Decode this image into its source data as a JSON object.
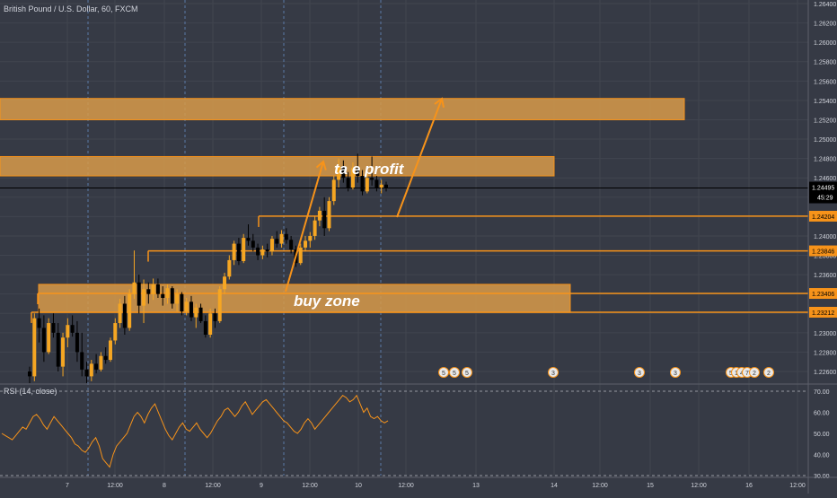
{
  "symbol_title": "British Pound / U.S. Dollar, 60, FXCM",
  "rsi_title": "RSI (14, close)",
  "colors": {
    "background": "#363a45",
    "grid": "#41454f",
    "up": "#f5a623",
    "down": "#000000",
    "zone_fill": "#d89b4a",
    "accent": "#f7931a",
    "text": "#d1d4dc",
    "price_label_bg": "#000000",
    "rsi_line": "#f7931a"
  },
  "annotations": {
    "buy_zone": "buy zone",
    "take_profit": "take profit",
    "take_profit_visible": "ta    e profit"
  },
  "event_markers": [
    "5",
    "5",
    "5",
    "3",
    "3",
    "3",
    "5",
    "1",
    "4",
    "7",
    "2",
    "2"
  ],
  "chart_data": [
    {
      "type": "candlestick",
      "title": "British Pound / U.S. Dollar, 60, FXCM",
      "xlabel": "",
      "ylabel": "",
      "x_ticks": [
        "7",
        "12:00",
        "8",
        "12:00",
        "9",
        "12:00",
        "10",
        "12:00",
        "13",
        "14",
        "12:00",
        "15",
        "12:00",
        "16",
        "12:00"
      ],
      "y_ticks": [
        1.226,
        1.228,
        1.23,
        1.232,
        1.234,
        1.236,
        1.238,
        1.24,
        1.242,
        1.244,
        1.246,
        1.248,
        1.25,
        1.252,
        1.254,
        1.256,
        1.258,
        1.26,
        1.262,
        1.264
      ],
      "ylim": [
        1.2253,
        1.2643
      ],
      "grid": true,
      "current_price": 1.24495,
      "countdown": "45:29",
      "horizontal_levels": [
        1.24204,
        1.23846,
        1.23406,
        1.23212
      ],
      "zones": [
        {
          "low": 1.252,
          "high": 1.2542
        },
        {
          "low": 1.2462,
          "high": 1.2482
        },
        {
          "low": 1.2321,
          "high": 1.235
        }
      ],
      "candles": [
        {
          "o": 1.226,
          "h": 1.2265,
          "l": 1.2248,
          "c": 1.2255
        },
        {
          "o": 1.2255,
          "h": 1.232,
          "l": 1.225,
          "c": 1.2315
        },
        {
          "o": 1.2315,
          "h": 1.2325,
          "l": 1.229,
          "c": 1.2305
        },
        {
          "o": 1.2305,
          "h": 1.2318,
          "l": 1.227,
          "c": 1.228
        },
        {
          "o": 1.228,
          "h": 1.2315,
          "l": 1.2278,
          "c": 1.231
        },
        {
          "o": 1.231,
          "h": 1.232,
          "l": 1.2295,
          "c": 1.23
        },
        {
          "o": 1.23,
          "h": 1.231,
          "l": 1.226,
          "c": 1.2265
        },
        {
          "o": 1.2265,
          "h": 1.23,
          "l": 1.2255,
          "c": 1.2295
        },
        {
          "o": 1.2295,
          "h": 1.2315,
          "l": 1.2285,
          "c": 1.2308
        },
        {
          "o": 1.2308,
          "h": 1.2318,
          "l": 1.2296,
          "c": 1.23
        },
        {
          "o": 1.23,
          "h": 1.2312,
          "l": 1.227,
          "c": 1.228
        },
        {
          "o": 1.228,
          "h": 1.23,
          "l": 1.2255,
          "c": 1.2262
        },
        {
          "o": 1.2262,
          "h": 1.227,
          "l": 1.2248,
          "c": 1.2255
        },
        {
          "o": 1.2255,
          "h": 1.2272,
          "l": 1.225,
          "c": 1.2268
        },
        {
          "o": 1.2268,
          "h": 1.2278,
          "l": 1.2258,
          "c": 1.2262
        },
        {
          "o": 1.2262,
          "h": 1.228,
          "l": 1.226,
          "c": 1.2276
        },
        {
          "o": 1.2276,
          "h": 1.2285,
          "l": 1.2268,
          "c": 1.2272
        },
        {
          "o": 1.2272,
          "h": 1.2295,
          "l": 1.227,
          "c": 1.2292
        },
        {
          "o": 1.2292,
          "h": 1.2315,
          "l": 1.2288,
          "c": 1.231
        },
        {
          "o": 1.231,
          "h": 1.2335,
          "l": 1.2305,
          "c": 1.233
        },
        {
          "o": 1.233,
          "h": 1.2338,
          "l": 1.2298,
          "c": 1.2305
        },
        {
          "o": 1.2305,
          "h": 1.2345,
          "l": 1.2302,
          "c": 1.234
        },
        {
          "o": 1.234,
          "h": 1.2385,
          "l": 1.2335,
          "c": 1.2352
        },
        {
          "o": 1.2352,
          "h": 1.236,
          "l": 1.232,
          "c": 1.2328
        },
        {
          "o": 1.2328,
          "h": 1.2355,
          "l": 1.231,
          "c": 1.2345
        },
        {
          "o": 1.2345,
          "h": 1.2352,
          "l": 1.233,
          "c": 1.234
        },
        {
          "o": 1.234,
          "h": 1.2356,
          "l": 1.2334,
          "c": 1.235
        },
        {
          "o": 1.235,
          "h": 1.2356,
          "l": 1.2336,
          "c": 1.234
        },
        {
          "o": 1.234,
          "h": 1.2348,
          "l": 1.2328,
          "c": 1.2336
        },
        {
          "o": 1.2336,
          "h": 1.235,
          "l": 1.233,
          "c": 1.2346
        },
        {
          "o": 1.2346,
          "h": 1.2348,
          "l": 1.2325,
          "c": 1.233
        },
        {
          "o": 1.233,
          "h": 1.2345,
          "l": 1.2322,
          "c": 1.234
        },
        {
          "o": 1.234,
          "h": 1.2342,
          "l": 1.2318,
          "c": 1.2322
        },
        {
          "o": 1.2322,
          "h": 1.2336,
          "l": 1.2318,
          "c": 1.2332
        },
        {
          "o": 1.2332,
          "h": 1.2338,
          "l": 1.2312,
          "c": 1.2316
        },
        {
          "o": 1.2316,
          "h": 1.233,
          "l": 1.2305,
          "c": 1.2326
        },
        {
          "o": 1.2326,
          "h": 1.233,
          "l": 1.231,
          "c": 1.2312
        },
        {
          "o": 1.2312,
          "h": 1.2318,
          "l": 1.2295,
          "c": 1.2298
        },
        {
          "o": 1.2298,
          "h": 1.2325,
          "l": 1.2295,
          "c": 1.232
        },
        {
          "o": 1.232,
          "h": 1.2325,
          "l": 1.2305,
          "c": 1.2312
        },
        {
          "o": 1.2312,
          "h": 1.2348,
          "l": 1.231,
          "c": 1.2345
        },
        {
          "o": 1.2345,
          "h": 1.2362,
          "l": 1.234,
          "c": 1.2358
        },
        {
          "o": 1.2358,
          "h": 1.238,
          "l": 1.2355,
          "c": 1.2375
        },
        {
          "o": 1.2375,
          "h": 1.2395,
          "l": 1.237,
          "c": 1.2392
        },
        {
          "o": 1.2392,
          "h": 1.2398,
          "l": 1.237,
          "c": 1.2374
        },
        {
          "o": 1.2374,
          "h": 1.2402,
          "l": 1.2372,
          "c": 1.2398
        },
        {
          "o": 1.2398,
          "h": 1.2412,
          "l": 1.239,
          "c": 1.2395
        },
        {
          "o": 1.2395,
          "h": 1.2402,
          "l": 1.2384,
          "c": 1.2388
        },
        {
          "o": 1.2388,
          "h": 1.2392,
          "l": 1.2375,
          "c": 1.238
        },
        {
          "o": 1.238,
          "h": 1.239,
          "l": 1.2376,
          "c": 1.2386
        },
        {
          "o": 1.2386,
          "h": 1.2392,
          "l": 1.2378,
          "c": 1.2384
        },
        {
          "o": 1.2384,
          "h": 1.24,
          "l": 1.238,
          "c": 1.2397
        },
        {
          "o": 1.2397,
          "h": 1.2405,
          "l": 1.2388,
          "c": 1.2392
        },
        {
          "o": 1.2392,
          "h": 1.2406,
          "l": 1.2388,
          "c": 1.2402
        },
        {
          "o": 1.2402,
          "h": 1.2408,
          "l": 1.2392,
          "c": 1.2396
        },
        {
          "o": 1.2396,
          "h": 1.24,
          "l": 1.2382,
          "c": 1.2386
        },
        {
          "o": 1.2386,
          "h": 1.239,
          "l": 1.2368,
          "c": 1.2372
        },
        {
          "o": 1.2372,
          "h": 1.2392,
          "l": 1.237,
          "c": 1.2388
        },
        {
          "o": 1.2388,
          "h": 1.24,
          "l": 1.2384,
          "c": 1.2395
        },
        {
          "o": 1.2395,
          "h": 1.2404,
          "l": 1.2388,
          "c": 1.24
        },
        {
          "o": 1.24,
          "h": 1.242,
          "l": 1.2396,
          "c": 1.2416
        },
        {
          "o": 1.2416,
          "h": 1.243,
          "l": 1.241,
          "c": 1.2426
        },
        {
          "o": 1.2426,
          "h": 1.244,
          "l": 1.24,
          "c": 1.2408
        },
        {
          "o": 1.2408,
          "h": 1.244,
          "l": 1.2405,
          "c": 1.2436
        },
        {
          "o": 1.2436,
          "h": 1.2462,
          "l": 1.2432,
          "c": 1.2458
        },
        {
          "o": 1.2458,
          "h": 1.248,
          "l": 1.245,
          "c": 1.2472
        },
        {
          "o": 1.2472,
          "h": 1.2478,
          "l": 1.2455,
          "c": 1.246
        },
        {
          "o": 1.246,
          "h": 1.2466,
          "l": 1.2446,
          "c": 1.245
        },
        {
          "o": 1.245,
          "h": 1.2476,
          "l": 1.2448,
          "c": 1.247
        },
        {
          "o": 1.247,
          "h": 1.2485,
          "l": 1.2455,
          "c": 1.2462
        },
        {
          "o": 1.2462,
          "h": 1.2468,
          "l": 1.2442,
          "c": 1.2446
        },
        {
          "o": 1.2446,
          "h": 1.2466,
          "l": 1.2444,
          "c": 1.246
        },
        {
          "o": 1.246,
          "h": 1.2482,
          "l": 1.2452,
          "c": 1.2458
        },
        {
          "o": 1.2458,
          "h": 1.2462,
          "l": 1.2446,
          "c": 1.245
        },
        {
          "o": 1.245,
          "h": 1.2458,
          "l": 1.2444,
          "c": 1.2453
        },
        {
          "o": 1.2453,
          "h": 1.2456,
          "l": 1.2446,
          "c": 1.24495
        }
      ]
    },
    {
      "type": "line",
      "title": "RSI (14, close)",
      "ylim": [
        27,
        72
      ],
      "y_ticks": [
        30.0,
        40.0,
        50.0,
        60.0,
        70.0
      ],
      "levels": [
        70,
        30
      ],
      "x_ticks": [
        "7",
        "12:00",
        "8",
        "12:00",
        "9",
        "12:00",
        "10",
        "12:00",
        "13",
        "14",
        "12:00",
        "15",
        "12:00",
        "16",
        "12:00"
      ],
      "values": [
        50,
        49,
        48,
        47,
        49,
        51,
        53,
        52,
        55,
        58,
        59,
        57,
        54,
        52,
        55,
        58,
        56,
        54,
        52,
        50,
        48,
        45,
        44,
        42,
        41,
        43,
        46,
        48,
        44,
        38,
        36,
        34,
        40,
        44,
        46,
        48,
        50,
        54,
        58,
        60,
        58,
        55,
        59,
        62,
        64,
        60,
        56,
        52,
        49,
        47,
        50,
        53,
        55,
        52,
        51,
        53,
        55,
        52,
        50,
        48,
        50,
        53,
        56,
        58,
        61,
        62,
        60,
        58,
        60,
        63,
        65,
        62,
        59,
        61,
        63,
        65,
        66,
        64,
        62,
        60,
        58,
        56,
        55,
        53,
        51,
        50,
        52,
        55,
        57,
        55,
        52,
        54,
        56,
        58,
        60,
        62,
        64,
        66,
        68,
        67,
        65,
        66,
        68,
        64,
        60,
        62,
        58,
        57,
        58,
        56,
        55,
        56
      ]
    }
  ]
}
